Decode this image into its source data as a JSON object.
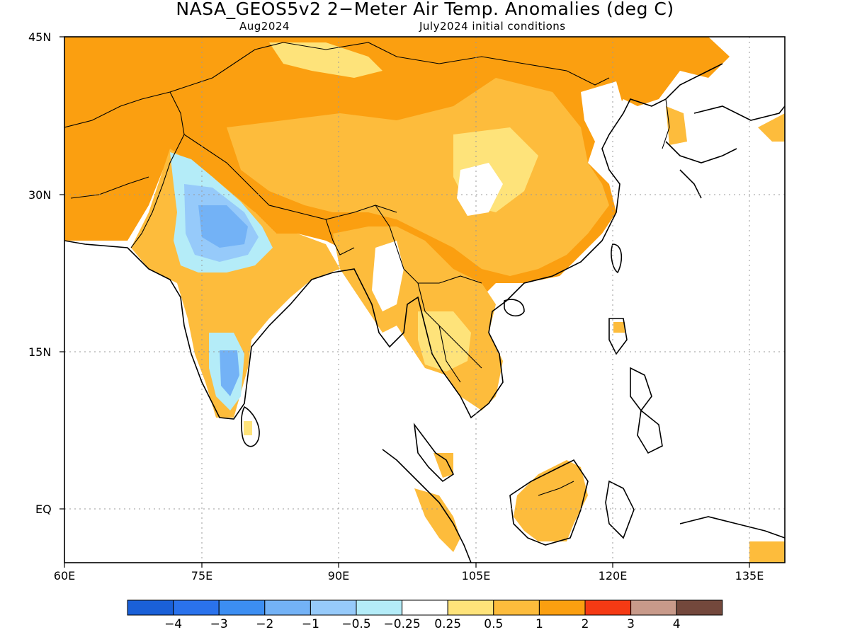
{
  "title": "NASA_GEOS5v2 2−Meter Air Temp. Anomalies (deg C)",
  "subtitle_left": "Aug2024",
  "subtitle_right": "July2024 initial conditions",
  "lat_labels": [
    "45N",
    "30N",
    "15N",
    "EQ"
  ],
  "lon_labels": [
    "60E",
    "75E",
    "90E",
    "105E",
    "120E",
    "135E"
  ],
  "colorbar": {
    "colors": [
      "#1a60d8",
      "#2a72ec",
      "#3c8ef2",
      "#73b2f6",
      "#96cafa",
      "#b4ecf8",
      "#ffffff",
      "#fee37a",
      "#fdbc3c",
      "#fb9f10",
      "#f53a14",
      "#c89a8a",
      "#73483c"
    ],
    "labels": [
      "−4",
      "−3",
      "−2",
      "−1",
      "−0.5",
      "−0.25",
      "0.25",
      "0.5",
      "1",
      "2",
      "3",
      "4"
    ]
  },
  "colors": {
    "anom_05_1": "#fdbc3c",
    "anom_1_2": "#fb9f10",
    "anom_025_05": "#fee37a",
    "anom_neg_025_neg_05": "#b4ecf8",
    "anom_neg_05_neg_1": "#96cafa",
    "anom_neg_1_neg_2": "#73b2f6"
  }
}
